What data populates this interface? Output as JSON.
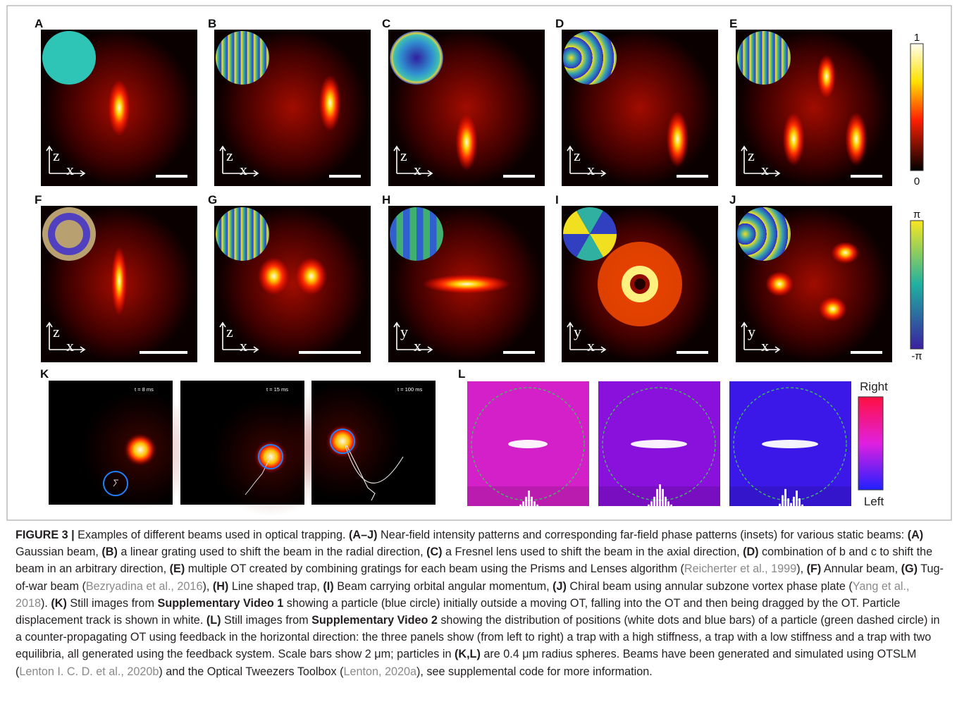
{
  "panels_top": [
    {
      "letter": "A",
      "axis_v": "z",
      "axis_h": "x"
    },
    {
      "letter": "B",
      "axis_v": "z",
      "axis_h": "x"
    },
    {
      "letter": "C",
      "axis_v": "z",
      "axis_h": "x"
    },
    {
      "letter": "D",
      "axis_v": "z",
      "axis_h": "x"
    },
    {
      "letter": "E",
      "axis_v": "z",
      "axis_h": "x"
    }
  ],
  "colorbar_intensity": {
    "max": "1",
    "min": "0"
  },
  "panels_mid": [
    {
      "letter": "F",
      "axis_v": "z",
      "axis_h": "x"
    },
    {
      "letter": "G",
      "axis_v": "z",
      "axis_h": "x"
    },
    {
      "letter": "H",
      "axis_v": "y",
      "axis_h": "x"
    },
    {
      "letter": "I",
      "axis_v": "y",
      "axis_h": "x"
    },
    {
      "letter": "J",
      "axis_v": "y",
      "axis_h": "x"
    }
  ],
  "colorbar_phase": {
    "max": "π",
    "min": "-π"
  },
  "panel_k": {
    "letter": "K",
    "frames": [
      "t = 8 ms",
      "t = 15 ms",
      "t = 100 ms"
    ]
  },
  "panel_l": {
    "letter": "L",
    "colorbar": {
      "max": "Right",
      "min": "Left"
    }
  },
  "caption": {
    "runs": [
      {
        "text": "FIGURE 3 |",
        "style": "bold"
      },
      {
        "text": " Examples of different beams used in optical trapping. ",
        "style": "plain"
      },
      {
        "text": "(A–J)",
        "style": "bold"
      },
      {
        "text": " Near-field intensity patterns and corresponding far-field phase patterns (insets) for various static beams: ",
        "style": "plain"
      },
      {
        "text": "(A)",
        "style": "bold"
      },
      {
        "text": " Gaussian beam, ",
        "style": "plain"
      },
      {
        "text": "(B)",
        "style": "bold"
      },
      {
        "text": " a linear grating used to shift the beam in the radial direction, ",
        "style": "plain"
      },
      {
        "text": "(C)",
        "style": "bold"
      },
      {
        "text": " a Fresnel lens used to shift the beam in the axial direction, ",
        "style": "plain"
      },
      {
        "text": "(D)",
        "style": "bold"
      },
      {
        "text": " combination of b and c to shift the beam in an arbitrary direction, ",
        "style": "plain"
      },
      {
        "text": "(E)",
        "style": "bold"
      },
      {
        "text": " multiple OT created by combining gratings for each beam using the Prisms and Lenses algorithm (",
        "style": "plain"
      },
      {
        "text": "Reicherter et al., 1999",
        "style": "ref"
      },
      {
        "text": "), ",
        "style": "plain"
      },
      {
        "text": "(F)",
        "style": "bold"
      },
      {
        "text": " Annular beam, ",
        "style": "plain"
      },
      {
        "text": "(G)",
        "style": "bold"
      },
      {
        "text": " Tug-of-war beam (",
        "style": "plain"
      },
      {
        "text": "Bezryadina et al., 2016",
        "style": "ref"
      },
      {
        "text": "), ",
        "style": "plain"
      },
      {
        "text": "(H)",
        "style": "bold"
      },
      {
        "text": " Line shaped trap, ",
        "style": "plain"
      },
      {
        "text": "(I)",
        "style": "bold"
      },
      {
        "text": " Beam carrying orbital angular momentum, ",
        "style": "plain"
      },
      {
        "text": "(J)",
        "style": "bold"
      },
      {
        "text": " Chiral beam using annular subzone vortex phase plate (",
        "style": "plain"
      },
      {
        "text": "Yang et al., 2018",
        "style": "ref"
      },
      {
        "text": "). ",
        "style": "plain"
      },
      {
        "text": "(K)",
        "style": "bold"
      },
      {
        "text": " Still images from ",
        "style": "plain"
      },
      {
        "text": "Supplementary Video 1",
        "style": "bold"
      },
      {
        "text": " showing a particle (blue circle) initially outside a moving OT, falling into the OT and then being dragged by the OT. Particle displacement track is shown in white. ",
        "style": "plain"
      },
      {
        "text": "(L)",
        "style": "bold"
      },
      {
        "text": " Still images from ",
        "style": "plain"
      },
      {
        "text": "Supplementary Video 2",
        "style": "bold"
      },
      {
        "text": " showing the distribution of positions (white dots and blue bars) of a particle (green dashed circle) in a counter-propagating OT using feedback in the horizontal direction: the three panels show (from left to right) a trap with a high stiffness, a trap with a low stiffness and a trap with two equilibria, all generated using the feedback system. Scale bars show 2 μm; particles in ",
        "style": "plain"
      },
      {
        "text": "(K,L)",
        "style": "bold"
      },
      {
        "text": " are 0.4 μm radius spheres. Beams have been generated and simulated using OTSLM (",
        "style": "plain"
      },
      {
        "text": "Lenton I. C. D. et al., 2020b",
        "style": "ref"
      },
      {
        "text": ") and the Optical Tweezers Toolbox (",
        "style": "plain"
      },
      {
        "text": "Lenton, 2020a",
        "style": "ref"
      },
      {
        "text": "), see supplemental code for more information.",
        "style": "plain"
      }
    ]
  }
}
